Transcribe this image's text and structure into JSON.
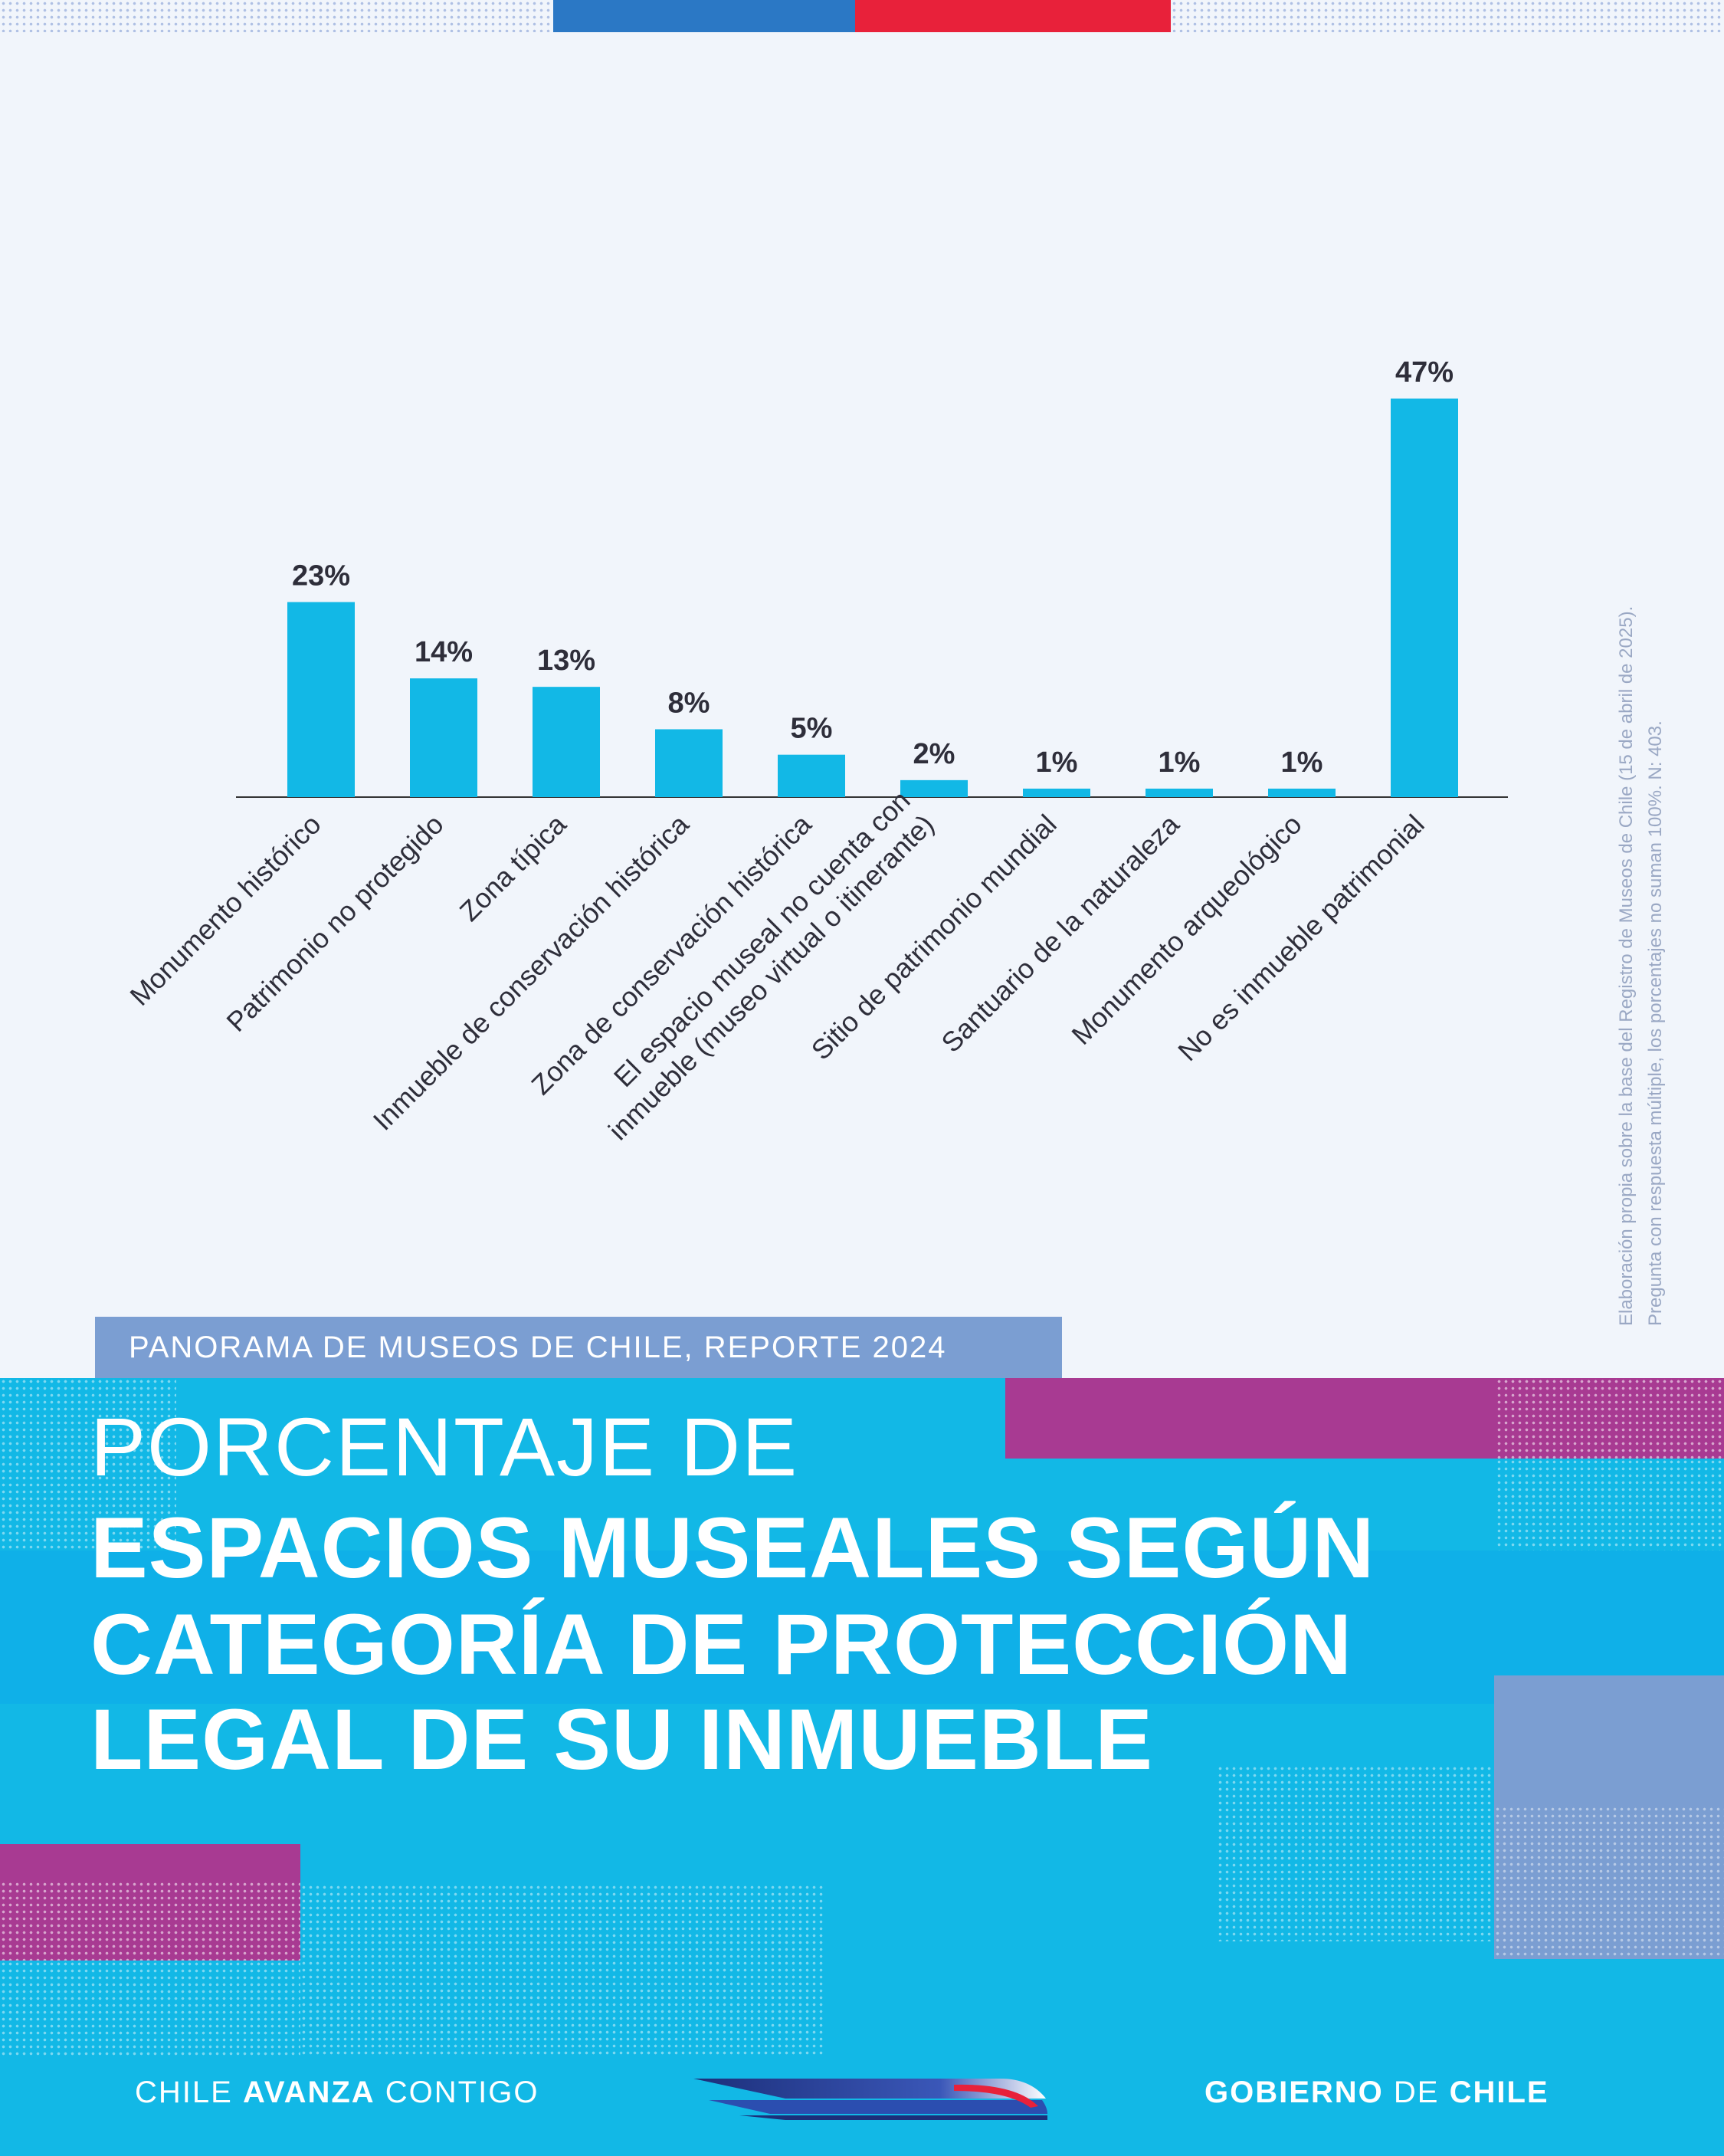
{
  "header_colors": [
    "#2b78c5",
    "#e8213a"
  ],
  "chart_data": {
    "type": "bar",
    "categories": [
      [
        "Monumento histórico"
      ],
      [
        "Patrimonio no protegido"
      ],
      [
        "Zona típica"
      ],
      [
        "Inmueble de conservación histórica"
      ],
      [
        "Zona de conservación histórica"
      ],
      [
        "El espacio museal no cuenta con",
        "inmueble (museo virtual o itinerante)"
      ],
      [
        "Sitio de patrimonio mundial"
      ],
      [
        "Santuario de la naturaleza"
      ],
      [
        "Monumento arqueológico"
      ],
      [
        "No es inmueble patrimonial"
      ]
    ],
    "values": [
      23,
      14,
      13,
      8,
      5,
      2,
      1,
      1,
      1,
      47
    ],
    "value_labels": [
      "23%",
      "14%",
      "13%",
      "8%",
      "5%",
      "2%",
      "1%",
      "1%",
      "1%",
      "47%"
    ],
    "ylim": [
      0,
      47
    ],
    "bar_color": "#12b8e6",
    "grid": false
  },
  "source_note": {
    "line1": "Elaboración propia sobre la base del Registro de Museos de Chile (15 de abril de 2025).",
    "line2": "Pregunta con respuesta múltiple, los porcentajes no suman 100%. N: 403."
  },
  "report_tag": "PANORAMA DE MUSEOS DE CHILE, REPORTE 2024",
  "title": {
    "line1": "PORCENTAJE DE",
    "line2": "ESPACIOS MUSEALES SEGÚN",
    "line3": "CATEGORÍA DE PROTECCIÓN",
    "line4": "LEGAL DE SU INMUEBLE"
  },
  "footer": {
    "left_pre": "CHILE ",
    "left_bold": "AVANZA",
    "left_post": " CONTIGO",
    "right_bold1": "GOBIERNO",
    "right_mid": " DE ",
    "right_bold2": "CHILE"
  },
  "colors": {
    "background": "#f1f5fb",
    "cyan": "#12b8e6",
    "purple": "#a83a92",
    "lavender": "#7b9ed2"
  }
}
